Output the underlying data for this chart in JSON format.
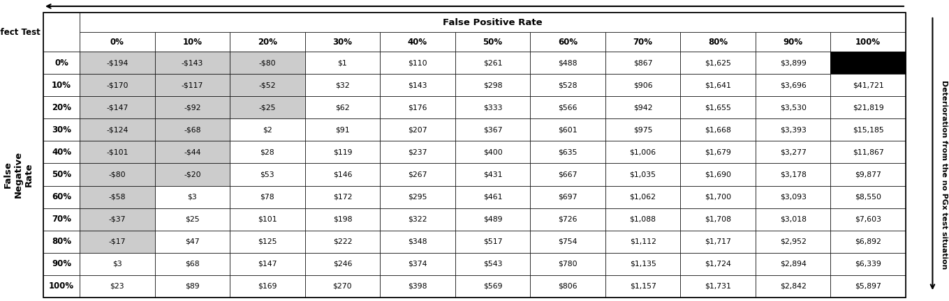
{
  "fnr_labels": [
    "0%",
    "10%",
    "20%",
    "30%",
    "40%",
    "50%",
    "60%",
    "70%",
    "80%",
    "90%",
    "100%"
  ],
  "fpr_labels": [
    "0%",
    "10%",
    "20%",
    "30%",
    "40%",
    "50%",
    "60%",
    "70%",
    "80%",
    "90%",
    "100%"
  ],
  "table_data": [
    [
      "-$194",
      "-$143",
      "-$80",
      "$1",
      "$110",
      "$261",
      "$488",
      "$867",
      "$1,625",
      "$3,899",
      ""
    ],
    [
      "-$170",
      "-$117",
      "-$52",
      "$32",
      "$143",
      "$298",
      "$528",
      "$906",
      "$1,641",
      "$3,696",
      "$41,721"
    ],
    [
      "-$147",
      "-$92",
      "-$25",
      "$62",
      "$176",
      "$333",
      "$566",
      "$942",
      "$1,655",
      "$3,530",
      "$21,819"
    ],
    [
      "-$124",
      "-$68",
      "$2",
      "$91",
      "$207",
      "$367",
      "$601",
      "$975",
      "$1,668",
      "$3,393",
      "$15,185"
    ],
    [
      "-$101",
      "-$44",
      "$28",
      "$119",
      "$237",
      "$400",
      "$635",
      "$1,006",
      "$1,679",
      "$3,277",
      "$11,867"
    ],
    [
      "-$80",
      "-$20",
      "$53",
      "$146",
      "$267",
      "$431",
      "$667",
      "$1,035",
      "$1,690",
      "$3,178",
      "$9,877"
    ],
    [
      "-$58",
      "$3",
      "$78",
      "$172",
      "$295",
      "$461",
      "$697",
      "$1,062",
      "$1,700",
      "$3,093",
      "$8,550"
    ],
    [
      "-$37",
      "$25",
      "$101",
      "$198",
      "$322",
      "$489",
      "$726",
      "$1,088",
      "$1,708",
      "$3,018",
      "$7,603"
    ],
    [
      "-$17",
      "$47",
      "$125",
      "$222",
      "$348",
      "$517",
      "$754",
      "$1,112",
      "$1,717",
      "$2,952",
      "$6,892"
    ],
    [
      "$3",
      "$68",
      "$147",
      "$246",
      "$374",
      "$543",
      "$780",
      "$1,135",
      "$1,724",
      "$2,894",
      "$6,339"
    ],
    [
      "$23",
      "$89",
      "$169",
      "$270",
      "$398",
      "$569",
      "$806",
      "$1,157",
      "$1,731",
      "$2,842",
      "$5,897"
    ]
  ],
  "cell_colors": [
    [
      "light_gray",
      "light_gray",
      "light_gray",
      "white",
      "white",
      "white",
      "white",
      "white",
      "white",
      "white",
      "black"
    ],
    [
      "light_gray",
      "light_gray",
      "light_gray",
      "white",
      "white",
      "white",
      "white",
      "white",
      "white",
      "white",
      "white"
    ],
    [
      "light_gray",
      "light_gray",
      "light_gray",
      "white",
      "white",
      "white",
      "white",
      "white",
      "white",
      "white",
      "white"
    ],
    [
      "light_gray",
      "light_gray",
      "white",
      "white",
      "white",
      "white",
      "white",
      "white",
      "white",
      "white",
      "white"
    ],
    [
      "light_gray",
      "light_gray",
      "white",
      "white",
      "white",
      "white",
      "white",
      "white",
      "white",
      "white",
      "white"
    ],
    [
      "light_gray",
      "light_gray",
      "white",
      "white",
      "white",
      "white",
      "white",
      "white",
      "white",
      "white",
      "white"
    ],
    [
      "light_gray",
      "white",
      "white",
      "white",
      "white",
      "white",
      "white",
      "white",
      "white",
      "white",
      "white"
    ],
    [
      "light_gray",
      "white",
      "white",
      "white",
      "white",
      "white",
      "white",
      "white",
      "white",
      "white",
      "white"
    ],
    [
      "light_gray",
      "white",
      "white",
      "white",
      "white",
      "white",
      "white",
      "white",
      "white",
      "white",
      "white"
    ],
    [
      "white",
      "white",
      "white",
      "white",
      "white",
      "white",
      "white",
      "white",
      "white",
      "white",
      "white"
    ],
    [
      "white",
      "white",
      "white",
      "white",
      "white",
      "white",
      "white",
      "white",
      "white",
      "white",
      "white"
    ]
  ],
  "perfect_test_label": "Perfect Test",
  "fpr_header": "False Positive Rate",
  "fnr_side_label": "False\nNegative\nRate",
  "right_label": "Deterioration from the no PGx test situation",
  "light_gray_color": "#cccccc",
  "fig_width": 13.59,
  "fig_height": 4.32,
  "dpi": 100
}
